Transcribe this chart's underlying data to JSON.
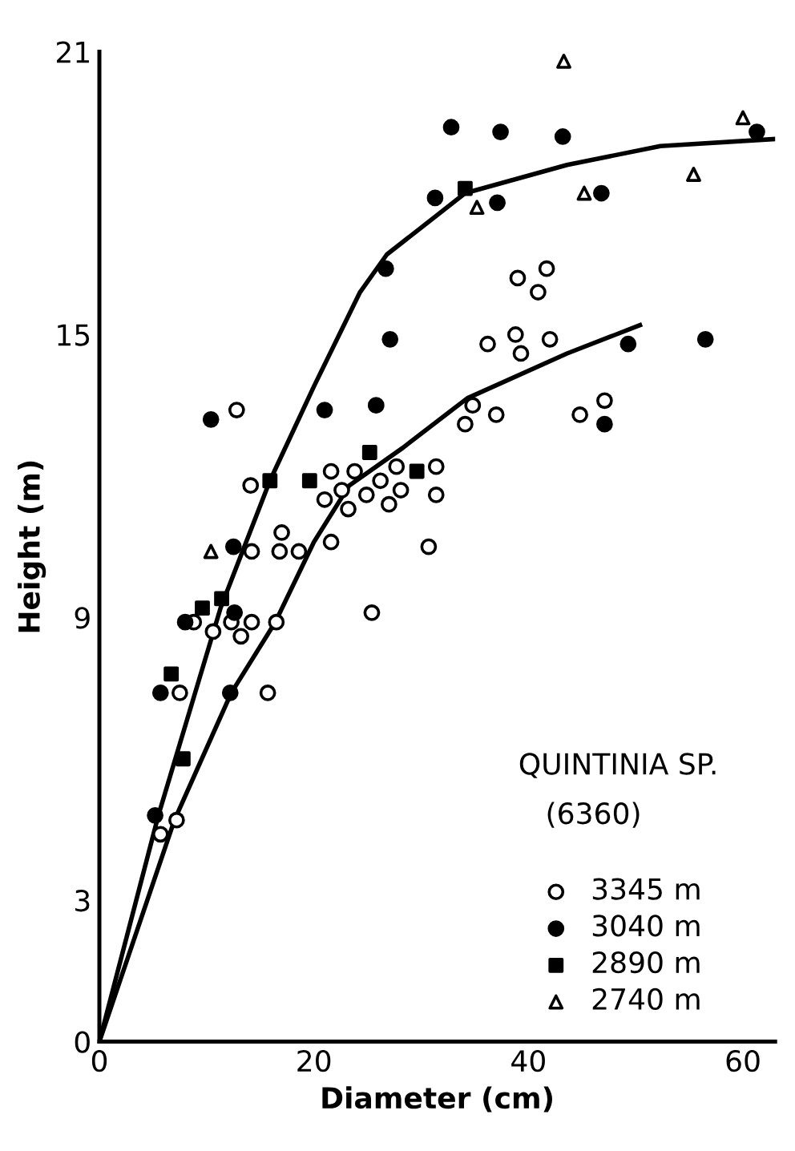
{
  "chart_data": {
    "type": "scatter",
    "xlabel": "Diameter (cm)",
    "ylabel": "Height (m)",
    "xlim": [
      0,
      63
    ],
    "ylim": [
      0,
      21
    ],
    "xticks": [
      0,
      20,
      40,
      60
    ],
    "yticks": [
      0,
      3,
      9,
      15,
      21
    ],
    "grid": false,
    "legend": "bottom right",
    "annotations": [
      "QUINTINIA SP.",
      "(6360)"
    ],
    "series": [
      {
        "name": "3345 m",
        "color": "#ffffff",
        "marker": "circle",
        "x": [
          5.7,
          7.2,
          7.5,
          8.8,
          10.6,
          12.3,
          13.2,
          14.2,
          16.5,
          15.7,
          12.8,
          14.1,
          14.2,
          17.0,
          16.8,
          18.6,
          21.6,
          23.8,
          27.7,
          31.4,
          22.6,
          21.0,
          24.9,
          26.2,
          28.1,
          27.0,
          23.2,
          31.4,
          21.6,
          30.7,
          25.4,
          34.8,
          34.1,
          37.0,
          39.0,
          41.7,
          40.9,
          36.2,
          38.8,
          39.3,
          42.0,
          44.8,
          47.1
        ],
        "values": [
          4.4,
          4.7,
          7.4,
          8.9,
          8.7,
          8.9,
          8.6,
          8.9,
          8.9,
          7.4,
          13.4,
          11.8,
          10.4,
          10.8,
          10.4,
          10.4,
          12.1,
          12.1,
          12.2,
          12.2,
          11.7,
          11.5,
          11.6,
          11.9,
          11.7,
          11.4,
          11.3,
          11.6,
          10.6,
          10.5,
          9.1,
          13.5,
          13.1,
          13.3,
          16.2,
          16.4,
          15.9,
          14.8,
          15.0,
          14.6,
          14.9,
          13.3,
          13.6
        ]
      },
      {
        "name": "3040 m",
        "color": "#000000",
        "marker": "circle",
        "x": [
          5.2,
          8.0,
          5.7,
          10.4,
          12.5,
          12.6,
          12.2,
          21.0,
          25.8,
          32.8,
          37.4,
          43.2,
          61.3,
          31.3,
          37.1,
          46.8,
          26.7,
          27.1,
          49.3,
          56.5,
          47.1
        ],
        "values": [
          4.8,
          8.9,
          7.4,
          13.2,
          10.5,
          9.1,
          7.4,
          13.4,
          13.5,
          19.4,
          19.3,
          19.2,
          19.3,
          17.9,
          17.8,
          18.0,
          16.4,
          14.9,
          14.8,
          14.9,
          13.1
        ]
      },
      {
        "name": "2890 m",
        "color": "#000000",
        "marker": "square",
        "x": [
          6.7,
          7.8,
          9.6,
          11.4,
          15.9,
          19.6,
          25.2,
          29.6,
          34.1
        ],
        "values": [
          7.8,
          6.0,
          9.2,
          9.4,
          11.9,
          11.9,
          12.5,
          12.1,
          18.1
        ]
      },
      {
        "name": "2740 m",
        "color": "#ffffff",
        "marker": "triangle",
        "x": [
          10.4,
          43.3,
          60.0,
          35.2,
          45.2,
          55.4
        ],
        "values": [
          10.4,
          20.8,
          19.6,
          17.7,
          18.0,
          18.4
        ]
      },
      {
        "type": "line",
        "color": "#000000",
        "marker": "none",
        "line_style": "solid",
        "x": [
          0,
          5.5,
          11.3,
          15.9,
          20,
          24.3,
          26.8,
          34.1,
          43.6,
          52.3,
          63
        ],
        "values": [
          0,
          4.8,
          9.2,
          11.9,
          13.9,
          15.9,
          16.7,
          18.0,
          18.6,
          19.0,
          19.15
        ]
      },
      {
        "type": "line",
        "color": "#000000",
        "marker": "none",
        "line_style": "solid",
        "x": [
          0,
          7.0,
          12.3,
          16.4,
          20,
          23.3,
          28.3,
          34.3,
          43.6,
          50.4
        ],
        "values": [
          0,
          4.7,
          7.4,
          8.9,
          10.6,
          11.8,
          12.6,
          13.65,
          14.6,
          15.2
        ]
      }
    ]
  }
}
